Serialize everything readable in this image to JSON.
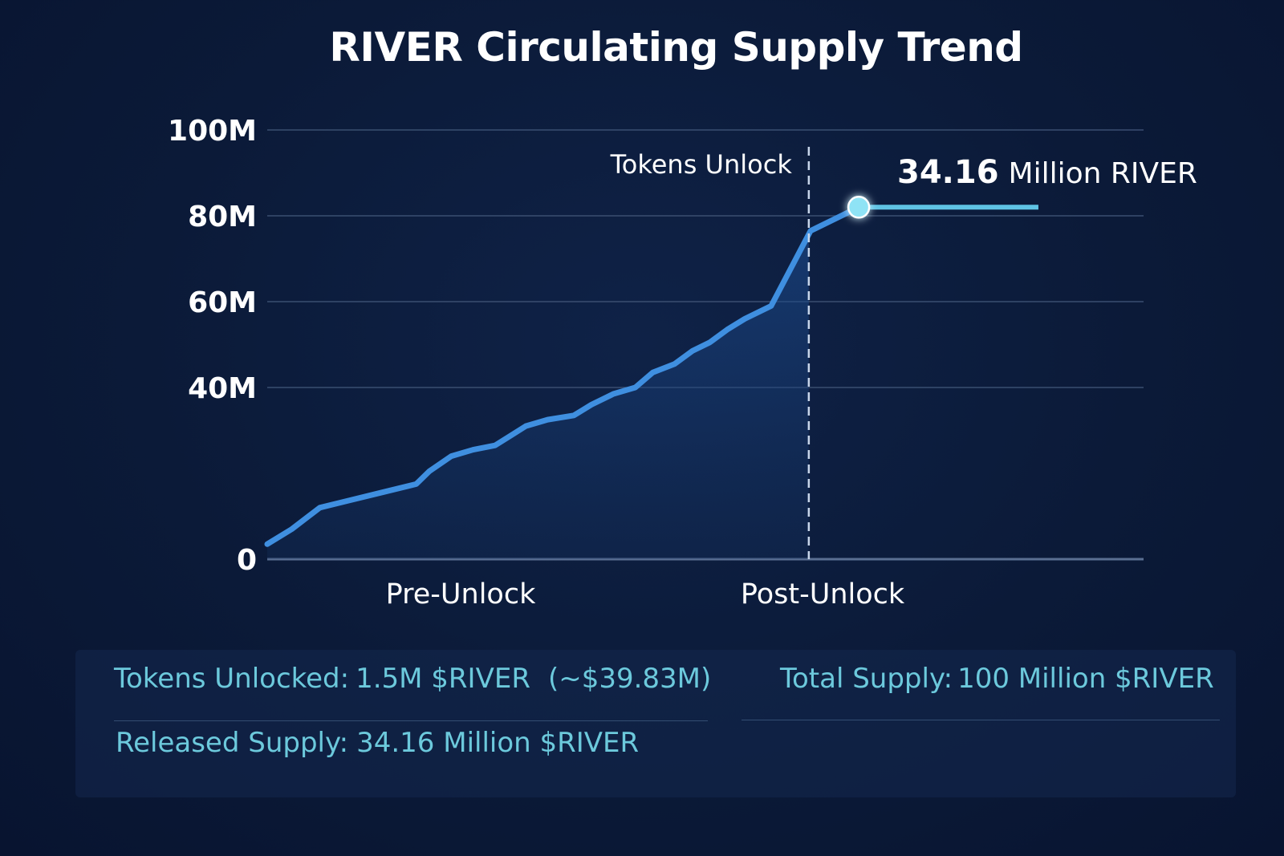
{
  "chart_data": {
    "type": "line",
    "title": "RIVER Circulating Supply Trend",
    "y_ticks": [
      "0",
      "40M",
      "60M",
      "80M",
      "100M"
    ],
    "y_tick_values": [
      0,
      40,
      60,
      80,
      100
    ],
    "ylim": [
      0,
      100
    ],
    "categories": [
      "Pre-Unlock",
      "Post-Unlock"
    ],
    "grid": true,
    "series": [
      {
        "values": [
          {
            "x": 0,
            "y": 3.5
          },
          {
            "x": 2.8,
            "y": 7
          },
          {
            "x": 6,
            "y": 12
          },
          {
            "x": 9,
            "y": 13.5
          },
          {
            "x": 13,
            "y": 15.5
          },
          {
            "x": 17,
            "y": 17.5
          },
          {
            "x": 18.5,
            "y": 20.5
          },
          {
            "x": 21,
            "y": 24
          },
          {
            "x": 23.5,
            "y": 25.5
          },
          {
            "x": 26,
            "y": 26.5
          },
          {
            "x": 29.5,
            "y": 31
          },
          {
            "x": 32,
            "y": 32.5
          },
          {
            "x": 35,
            "y": 33.5
          },
          {
            "x": 37,
            "y": 36
          },
          {
            "x": 39.5,
            "y": 38.5
          },
          {
            "x": 42,
            "y": 40
          },
          {
            "x": 44,
            "y": 43.5
          },
          {
            "x": 46.5,
            "y": 45.5
          },
          {
            "x": 48.5,
            "y": 48.5
          },
          {
            "x": 50.5,
            "y": 50.5
          },
          {
            "x": 52.5,
            "y": 53.5
          },
          {
            "x": 54.5,
            "y": 56
          },
          {
            "x": 57.5,
            "y": 59
          },
          {
            "x": 62,
            "y": 76.5
          },
          {
            "x": 67.5,
            "y": 82
          }
        ]
      },
      {
        "values": [
          {
            "x": 67.5,
            "y": 82
          },
          {
            "x": 88,
            "y": 82
          }
        ]
      }
    ],
    "annotations": {
      "unlock_line_label": "Tokens Unlock",
      "unlock_x": 61.8,
      "callout_value": "34.16",
      "callout_unit": "Million RIVER"
    }
  },
  "info": {
    "tokens_unlocked_label": "Tokens Unlocked:",
    "tokens_unlocked_value": "1.5M $RIVER",
    "tokens_unlocked_usd": "(~$39.83M)",
    "total_supply_label": "Total Supply:",
    "total_supply_value": "100 Million $RIVER",
    "released_supply_label": "Released Supply:",
    "released_supply_value": "34.16 Million $RIVER"
  },
  "colors": {
    "background": "#0b1a38",
    "line": "#3f8fe0",
    "post_line": "#5fc3e4",
    "marker": "#8fe3f5",
    "info_text": "#6cc9dc",
    "grid": "#3a4e70"
  }
}
